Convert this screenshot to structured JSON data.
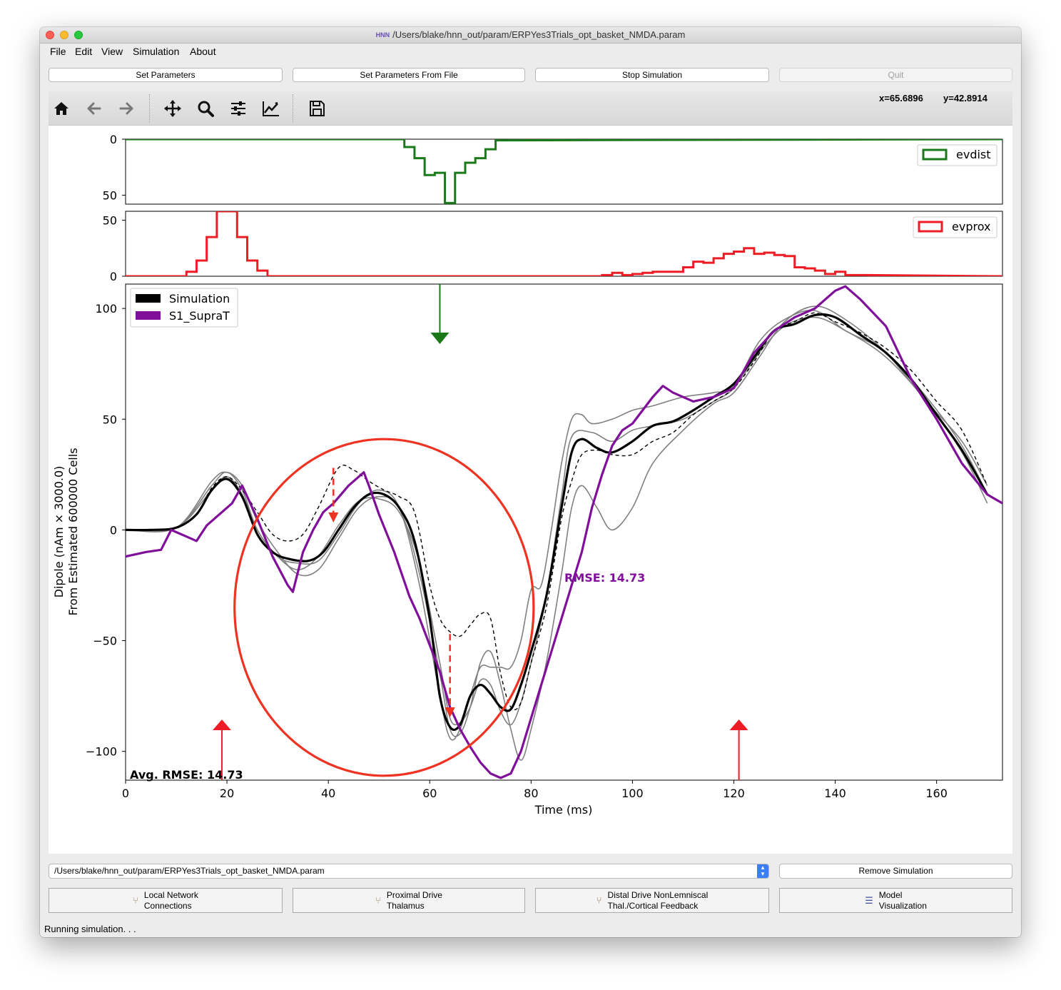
{
  "window": {
    "title": "/Users/blake/hnn_out/param/ERPYes3Trials_opt_basket_NMDA.param",
    "app_icon": "HNN"
  },
  "menu": [
    "File",
    "Edit",
    "View",
    "Simulation",
    "About"
  ],
  "buttons": {
    "set_parameters": "Set Parameters",
    "set_parameters_from_file": "Set Parameters From File",
    "stop_simulation": "Stop Simulation",
    "quit": "Quit"
  },
  "toolbar": {
    "icons": [
      "home-icon",
      "back-arrow-icon",
      "forward-arrow-icon",
      "pan-icon",
      "zoom-icon",
      "subplots-config-icon",
      "axes-edit-icon",
      "save-icon"
    ],
    "x_readout": "x=65.6896",
    "y_readout": "y=42.8914"
  },
  "plot": {
    "evdist_legend": "evdist",
    "evprox_legend": "evprox",
    "ylabel_line1": "Dipole (nAm × 3000.0)",
    "ylabel_line2": "From Estimated 600000 Cells",
    "xlabel": "Time (ms)",
    "rmse_label": "RMSE: 14.73",
    "avg_rmse_label": "Avg. RMSE: 14.73",
    "legend_simulation": "Simulation",
    "legend_data": "S1_SupraT",
    "colors": {
      "evdist": "#1a7a1a",
      "evprox": "#ee1c24",
      "data": "#800f9a",
      "simulation": "#000000",
      "trials": "#808080",
      "annotation": "#ee3322"
    }
  },
  "chart_data": [
    {
      "type": "bar",
      "name_legend": "evdist",
      "inverted_y": true,
      "ylim": [
        0,
        58
      ],
      "yticks": [
        0,
        50
      ],
      "x_bins": [
        53,
        55,
        57,
        59,
        61,
        63,
        65,
        67,
        69,
        71,
        73,
        75
      ],
      "values": [
        0,
        7,
        17,
        32,
        30,
        57,
        30,
        21,
        17,
        9,
        1,
        0
      ]
    },
    {
      "type": "bar",
      "name_legend": "evprox",
      "ylim": [
        0,
        58
      ],
      "yticks": [
        0,
        50
      ],
      "x_bins": [
        10,
        12,
        14,
        16,
        18,
        20,
        22,
        24,
        26,
        28,
        94,
        96,
        98,
        100,
        102,
        104,
        106,
        108,
        110,
        112,
        114,
        116,
        118,
        120,
        122,
        124,
        126,
        128,
        130,
        132,
        134,
        136,
        138,
        140,
        142,
        144,
        146
      ],
      "values": [
        0,
        4,
        14,
        35,
        58,
        58,
        35,
        14,
        5,
        0,
        1,
        3,
        1,
        2,
        3,
        4,
        4,
        4,
        8,
        13,
        12,
        16,
        20,
        22,
        25,
        20,
        21,
        19,
        18,
        8,
        7,
        5,
        2,
        4,
        1,
        1,
        0
      ]
    },
    {
      "type": "line",
      "xlabel": "Time (ms)",
      "ylabel": "Dipole (nAm × 3000.0) From Estimated 600000 Cells",
      "xlim": [
        0,
        173
      ],
      "ylim": [
        -113,
        111
      ],
      "xticks": [
        0,
        20,
        40,
        60,
        80,
        100,
        120,
        140,
        160
      ],
      "yticks": [
        -100,
        -50,
        0,
        50,
        100
      ],
      "legend_position": "upper-left",
      "series": [
        {
          "name": "Simulation",
          "style": "thick-black",
          "x": [
            0,
            5,
            10,
            14,
            17,
            20,
            23,
            26,
            29,
            32,
            36,
            39,
            42,
            45,
            48,
            51,
            54,
            57,
            60,
            62,
            64,
            66,
            68,
            70,
            72,
            74,
            76,
            78,
            80,
            83,
            86,
            88,
            90,
            93,
            96,
            100,
            104,
            108,
            112,
            116,
            120,
            124,
            128,
            132,
            136,
            140,
            145,
            150,
            155,
            160,
            165,
            170
          ],
          "y": [
            0,
            0,
            1,
            7,
            18,
            23,
            15,
            -2,
            -10,
            -13,
            -14,
            -10,
            0,
            10,
            16,
            16,
            10,
            -5,
            -40,
            -75,
            -89,
            -88,
            -75,
            -70,
            -74,
            -80,
            -81,
            -70,
            -55,
            -30,
            10,
            35,
            41,
            37,
            35,
            40,
            47,
            49,
            54,
            60,
            66,
            78,
            90,
            93,
            97,
            96,
            88,
            80,
            68,
            52,
            36,
            16
          ]
        },
        {
          "name": "",
          "style": "dashed-black",
          "x": [
            0,
            5,
            10,
            14,
            17,
            20,
            23,
            26,
            29,
            32,
            35,
            38,
            42,
            45,
            48,
            51,
            54,
            57,
            60,
            62,
            64,
            66,
            68,
            70,
            72,
            74,
            76,
            78,
            80,
            83,
            86,
            88,
            90,
            93,
            96,
            100,
            104,
            108,
            112,
            116,
            120,
            124,
            128,
            132,
            136,
            140,
            145,
            150,
            155,
            160,
            165,
            170
          ],
          "y": [
            0,
            0,
            1,
            7,
            19,
            24,
            18,
            8,
            -2,
            -5,
            -2,
            10,
            28,
            27,
            22,
            18,
            15,
            8,
            -25,
            -40,
            -46,
            -48,
            -43,
            -38,
            -40,
            -65,
            -80,
            -78,
            -60,
            -35,
            5,
            22,
            34,
            36,
            34,
            34,
            40,
            44,
            52,
            58,
            64,
            76,
            90,
            94,
            98,
            94,
            89,
            82,
            72,
            58,
            45,
            20
          ]
        },
        {
          "name": "",
          "style": "thin-gray",
          "x": [
            0,
            10,
            17,
            20,
            23,
            26,
            30,
            34,
            38,
            42,
            46,
            50,
            54,
            58,
            62,
            64,
            66,
            68,
            70,
            72,
            74,
            76,
            78,
            80,
            83,
            86,
            88,
            92,
            96,
            100,
            104,
            110,
            116,
            120,
            125,
            130,
            136,
            142,
            150,
            158,
            165,
            170
          ],
          "y": [
            0,
            1,
            20,
            26,
            18,
            0,
            -12,
            -18,
            -12,
            2,
            13,
            14,
            8,
            -15,
            -60,
            -85,
            -87,
            -80,
            -68,
            -70,
            -82,
            -88,
            -78,
            -60,
            -30,
            15,
            42,
            44,
            40,
            45,
            47,
            50,
            58,
            64,
            80,
            92,
            96,
            90,
            78,
            58,
            35,
            12
          ]
        },
        {
          "name": "",
          "style": "thin-gray",
          "x": [
            0,
            10,
            17,
            20,
            23,
            26,
            30,
            34,
            38,
            42,
            46,
            50,
            54,
            58,
            62,
            64,
            66,
            68,
            70,
            72,
            74,
            76,
            78,
            80,
            83,
            86,
            88,
            90,
            93,
            96,
            100,
            104,
            110,
            116,
            120,
            125,
            130,
            136,
            142,
            150,
            158,
            165,
            170
          ],
          "y": [
            0,
            1,
            22,
            26,
            20,
            4,
            -10,
            -20,
            -18,
            -4,
            10,
            15,
            10,
            -20,
            -65,
            -90,
            -92,
            -80,
            -60,
            -55,
            -70,
            -90,
            -104,
            -90,
            -60,
            -20,
            10,
            20,
            10,
            0,
            10,
            30,
            45,
            57,
            62,
            78,
            94,
            101,
            95,
            80,
            58,
            40,
            20
          ]
        },
        {
          "name": "",
          "style": "thin-gray",
          "x": [
            0,
            10,
            17,
            20,
            23,
            26,
            30,
            34,
            38,
            42,
            46,
            50,
            54,
            58,
            62,
            64,
            66,
            68,
            70,
            72,
            74,
            76,
            78,
            80,
            82,
            84,
            86,
            88,
            90,
            92,
            96,
            100,
            104,
            110,
            116,
            120,
            125,
            130,
            136,
            142,
            150,
            158,
            165,
            170
          ],
          "y": [
            0,
            1,
            18,
            24,
            16,
            0,
            -12,
            -15,
            -14,
            -2,
            12,
            18,
            10,
            -25,
            -75,
            -94,
            -90,
            -75,
            -62,
            -62,
            -62,
            -62,
            -50,
            -27,
            -25,
            0,
            30,
            50,
            52,
            48,
            50,
            54,
            56,
            60,
            62,
            65,
            85,
            95,
            99,
            90,
            80,
            60,
            38,
            16
          ]
        },
        {
          "name": "S1_SupraT",
          "style": "thick-purple",
          "x": [
            0,
            4,
            7,
            9,
            12,
            14,
            16,
            19,
            21,
            23,
            26,
            29,
            32,
            33,
            35,
            37,
            39,
            41,
            44,
            47,
            48,
            50,
            53,
            56,
            58,
            60,
            62,
            64,
            66,
            68,
            70,
            72,
            74,
            76,
            78,
            80,
            82,
            84,
            86,
            88,
            90,
            92,
            94,
            96,
            98,
            100,
            104,
            106,
            108,
            112,
            116,
            120,
            124,
            128,
            132,
            136,
            140,
            142,
            145,
            150,
            155,
            160,
            165,
            170,
            173
          ],
          "y": [
            -12,
            -10,
            -9,
            0,
            -3,
            -5,
            2,
            8,
            12,
            20,
            5,
            -12,
            -25,
            -28,
            -10,
            0,
            8,
            12,
            20,
            26,
            20,
            7,
            -10,
            -30,
            -40,
            -52,
            -64,
            -80,
            -90,
            -98,
            -105,
            -110,
            -112,
            -110,
            -100,
            -85,
            -70,
            -55,
            -40,
            -25,
            -10,
            10,
            25,
            38,
            45,
            48,
            60,
            65,
            62,
            58,
            60,
            64,
            80,
            90,
            96,
            100,
            108,
            110,
            104,
            92,
            68,
            50,
            30,
            16,
            12
          ]
        }
      ],
      "annotations": {
        "rmse_text": "RMSE: 14.73",
        "avg_rmse_text": "Avg. RMSE: 14.73",
        "distal_arrow_x": 62,
        "proximal_arrow_x": [
          19,
          121
        ],
        "dashed_arrows": [
          {
            "x": 41,
            "from": 28,
            "to": 4
          },
          {
            "x": 64,
            "from": -47,
            "to": -84
          }
        ],
        "circle_center": [
          51,
          -35
        ],
        "circle_radius_x": 29.5,
        "circle_radius_y": 76
      }
    }
  ],
  "simulation_select": {
    "value": "/Users/blake/hnn_out/param/ERPYes3Trials_opt_basket_NMDA.param"
  },
  "remove_simulation": "Remove Simulation",
  "bottom_buttons": {
    "local_network": {
      "line1": "Local Network",
      "line2": "Connections"
    },
    "proximal_drive": {
      "line1": "Proximal Drive",
      "line2": "Thalamus"
    },
    "distal_drive": {
      "line1": "Distal Drive NonLemniscal",
      "line2": "Thal./Cortical Feedback"
    },
    "model_visualization": {
      "line1": "Model",
      "line2": "Visualization"
    }
  },
  "status": "Running simulation. . ."
}
